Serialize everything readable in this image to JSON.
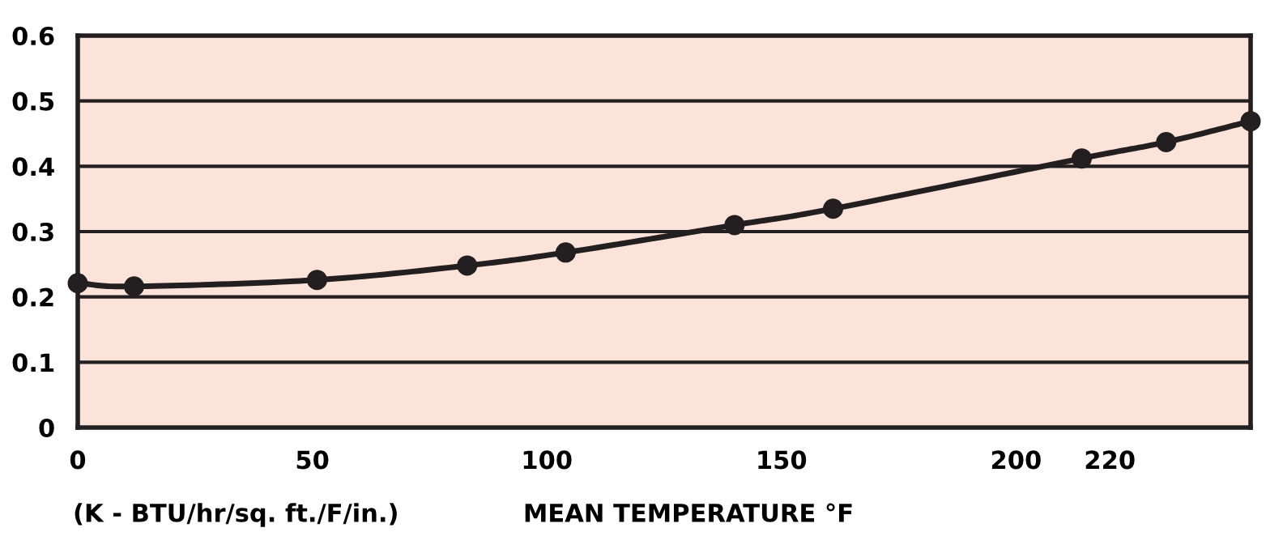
{
  "chart_data": {
    "type": "line",
    "xlabel": "MEAN TEMPERATURE °F",
    "annotations": [
      "(K - BTU/hr/sq. ft./F/in.)"
    ],
    "x": [
      0,
      12,
      51,
      83,
      104,
      140,
      161,
      214,
      232,
      250
    ],
    "series": [
      {
        "color": "#231f20",
        "values": [
          0.221,
          0.216,
          0.226,
          0.248,
          0.268,
          0.31,
          0.335,
          0.412,
          0.437,
          0.469
        ]
      }
    ],
    "xlim": [
      0,
      250
    ],
    "xticks": [
      0,
      50,
      100,
      150,
      200,
      220
    ],
    "ylim": [
      0,
      0.6
    ],
    "yticks": [
      0,
      0.1,
      0.2,
      0.3,
      0.4,
      0.5,
      0.6
    ],
    "grid": "y",
    "marker": "circle",
    "line_style": "solid",
    "legend": false
  }
}
